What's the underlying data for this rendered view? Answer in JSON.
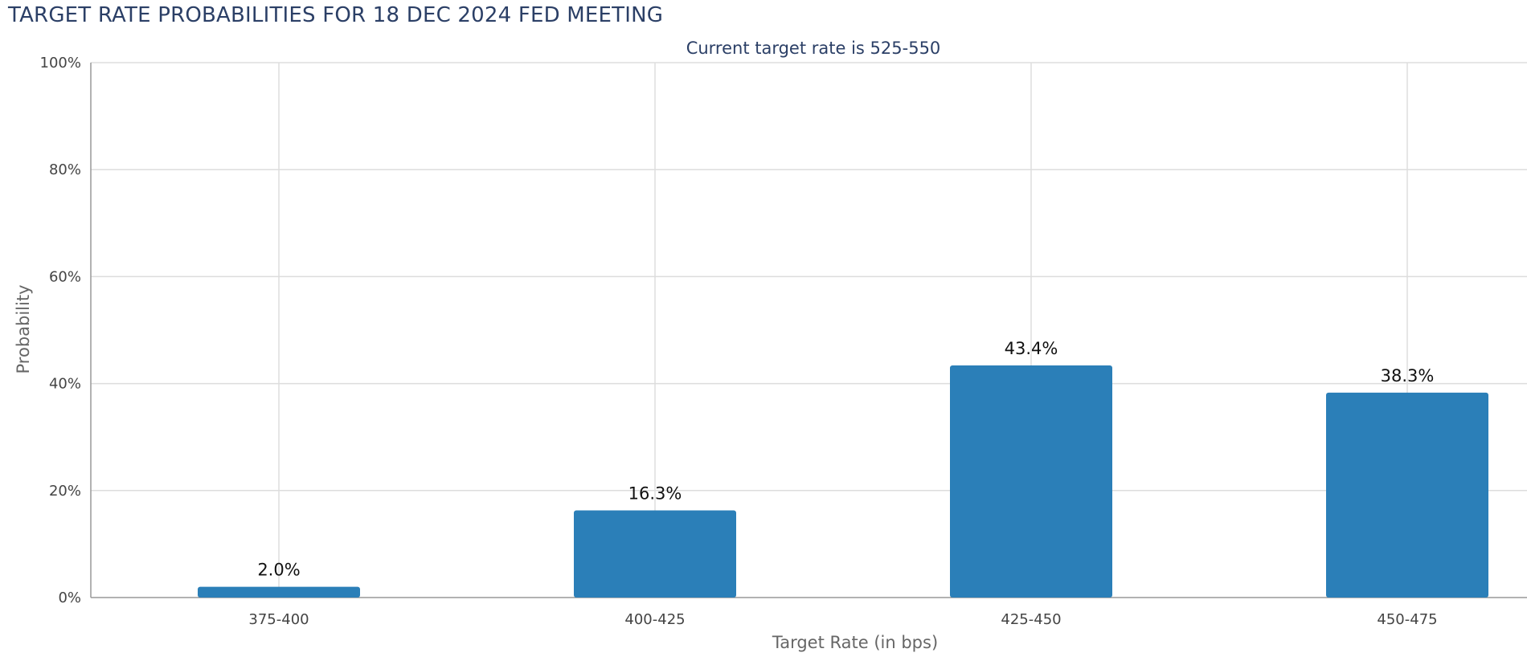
{
  "title": "TARGET RATE PROBABILITIES FOR 18 DEC 2024 FED MEETING",
  "colors": {
    "bar": "#2b7fb8",
    "title": "#2b3f66",
    "grid": "#dddddd",
    "axis": "#999999"
  },
  "chart_data": {
    "type": "bar",
    "subtitle": "Current target rate is 525-550",
    "categories": [
      "375-400",
      "400-425",
      "425-450",
      "450-475"
    ],
    "values": [
      2.0,
      16.3,
      43.4,
      38.3
    ],
    "data_labels": [
      "2.0%",
      "16.3%",
      "43.4%",
      "38.3%"
    ],
    "xlabel": "Target Rate (in bps)",
    "ylabel": "Probability",
    "ylim": [
      0,
      100
    ],
    "yticks": [
      0,
      20,
      40,
      60,
      80,
      100
    ],
    "ytick_labels": [
      "0%",
      "20%",
      "40%",
      "60%",
      "80%",
      "100%"
    ],
    "grid": true
  }
}
